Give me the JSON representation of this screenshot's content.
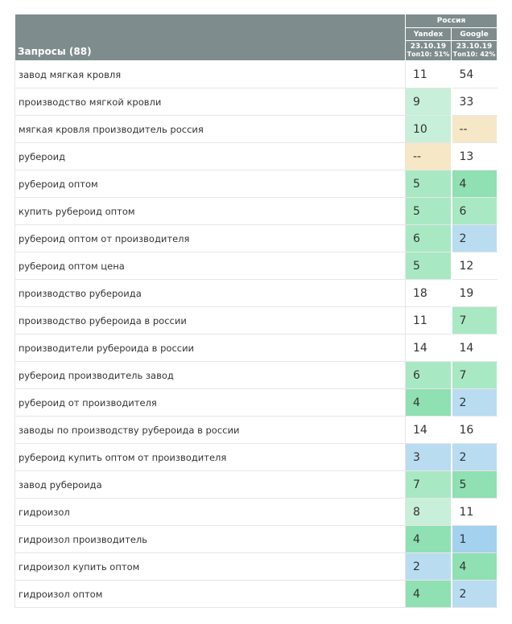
{
  "header": {
    "region": "Россия",
    "queries_label": "Запросы (88)",
    "engines": [
      {
        "name": "Yandex",
        "date": "23.10.19",
        "top": "Топ10: 51%"
      },
      {
        "name": "Google",
        "date": "23.10.19",
        "top": "Топ10: 42%"
      }
    ]
  },
  "palette": {
    "header_bg": "#7f8c8d",
    "top3": "#8fe0b2",
    "top5": "#a8e9c4",
    "top10": "#c7efd9",
    "first": "#a3d1ee",
    "top2": "#b9dcf1",
    "not_found": "#f6e7c6"
  },
  "rows": [
    {
      "query": "завод мягкая кровля",
      "yandex": "11",
      "google": "54",
      "yc": "white",
      "gc": "white"
    },
    {
      "query": "производство мягкой кровли",
      "yandex": "9",
      "google": "33",
      "yc": "lgreen",
      "gc": "white"
    },
    {
      "query": "мягкая кровля производитель россия",
      "yandex": "10",
      "google": "--",
      "yc": "lgreen",
      "gc": "beige"
    },
    {
      "query": "рубероид",
      "yandex": "--",
      "google": "13",
      "yc": "beige",
      "gc": "white"
    },
    {
      "query": "рубероид оптом",
      "yandex": "5",
      "google": "4",
      "yc": "green",
      "gc": "dgreen"
    },
    {
      "query": "купить рубероид оптом",
      "yandex": "5",
      "google": "6",
      "yc": "green",
      "gc": "green"
    },
    {
      "query": "рубероид оптом от производителя",
      "yandex": "6",
      "google": "2",
      "yc": "green",
      "gc": "blue"
    },
    {
      "query": "рубероид оптом цена",
      "yandex": "5",
      "google": "12",
      "yc": "green",
      "gc": "white"
    },
    {
      "query": "производство рубероида",
      "yandex": "18",
      "google": "19",
      "yc": "white",
      "gc": "white"
    },
    {
      "query": "производство рубероида в россии",
      "yandex": "11",
      "google": "7",
      "yc": "white",
      "gc": "green"
    },
    {
      "query": "производители рубероида в россии",
      "yandex": "14",
      "google": "14",
      "yc": "white",
      "gc": "white"
    },
    {
      "query": "рубероид производитель завод",
      "yandex": "6",
      "google": "7",
      "yc": "green",
      "gc": "green"
    },
    {
      "query": "рубероид от производителя",
      "yandex": "4",
      "google": "2",
      "yc": "dgreen",
      "gc": "blue"
    },
    {
      "query": "заводы по производству рубероида в россии",
      "yandex": "14",
      "google": "16",
      "yc": "white",
      "gc": "white"
    },
    {
      "query": "рубероид купить оптом от производителя",
      "yandex": "3",
      "google": "2",
      "yc": "blue",
      "gc": "blue"
    },
    {
      "query": "завод рубероида",
      "yandex": "7",
      "google": "5",
      "yc": "green",
      "gc": "dgreen"
    },
    {
      "query": "гидроизол",
      "yandex": "8",
      "google": "11",
      "yc": "lgreen",
      "gc": "white"
    },
    {
      "query": "гидроизол производитель",
      "yandex": "4",
      "google": "1",
      "yc": "dgreen",
      "gc": "dblue"
    },
    {
      "query": "гидроизол купить оптом",
      "yandex": "2",
      "google": "4",
      "yc": "blue",
      "gc": "dgreen"
    },
    {
      "query": "гидроизол оптом",
      "yandex": "4",
      "google": "2",
      "yc": "dgreen",
      "gc": "blue"
    }
  ]
}
